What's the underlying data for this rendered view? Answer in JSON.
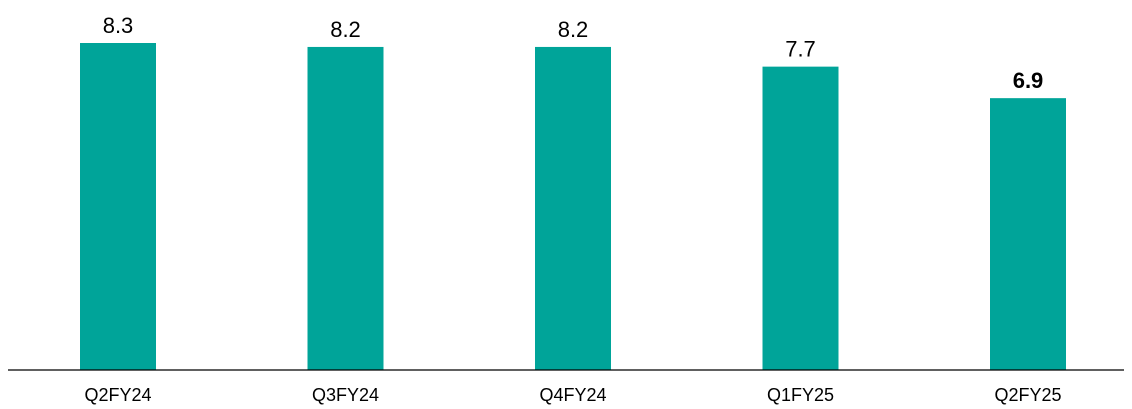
{
  "chart_data": {
    "type": "bar",
    "categories": [
      "Q2FY24",
      "Q3FY24",
      "Q4FY24",
      "Q1FY25",
      "Q2FY25"
    ],
    "values": [
      8.3,
      8.2,
      8.2,
      7.7,
      6.9
    ],
    "value_labels": [
      "8.3",
      "8.2",
      "8.2",
      "7.7",
      "6.9"
    ],
    "highlighted_index": 4,
    "title": "",
    "xlabel": "",
    "ylabel": "",
    "ylim": [
      0,
      8.3
    ],
    "grid": false,
    "legend": "none",
    "colors": {
      "bar": "#00A499",
      "axis": "#000000",
      "text": "#000000"
    }
  }
}
